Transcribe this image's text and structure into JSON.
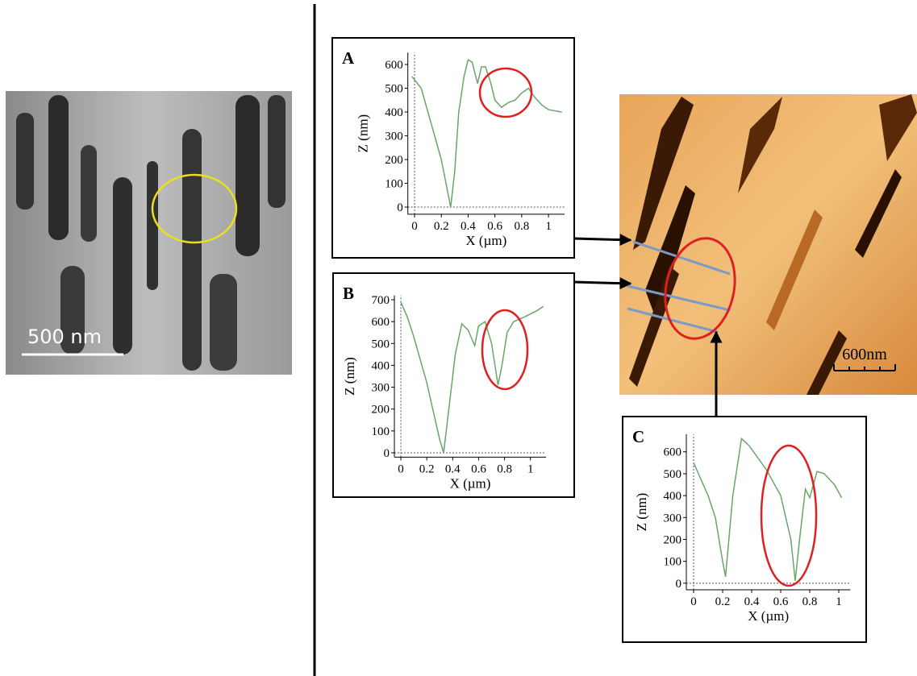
{
  "sem_scale_bar": "500 nm",
  "afm_scale_bar": "600nm",
  "chart_data": [
    {
      "type": "line",
      "label": "A",
      "xlabel": "X (µm)",
      "ylabel": "Z (nm)",
      "xlim": [
        -0.05,
        1.12
      ],
      "ylim": [
        -30,
        650
      ],
      "xticks": [
        0,
        0.2,
        0.4,
        0.6,
        0.8,
        1
      ],
      "yticks": [
        0,
        100,
        200,
        300,
        400,
        500,
        600
      ],
      "series": [
        {
          "color": "#6aa56a",
          "x": [
            -0.02,
            0.05,
            0.1,
            0.2,
            0.27,
            0.3,
            0.33,
            0.37,
            0.4,
            0.43,
            0.47,
            0.5,
            0.53,
            0.57,
            0.6,
            0.65,
            0.7,
            0.75,
            0.8,
            0.85,
            0.9,
            0.95,
            1.0,
            1.1
          ],
          "values": [
            550,
            500,
            400,
            200,
            0,
            150,
            400,
            550,
            620,
            610,
            520,
            590,
            590,
            520,
            450,
            420,
            440,
            450,
            480,
            500,
            460,
            430,
            410,
            400
          ]
        }
      ]
    },
    {
      "type": "line",
      "label": "B",
      "xlabel": "X (µm)",
      "ylabel": "Z (nm)",
      "xlim": [
        -0.05,
        1.12
      ],
      "ylim": [
        -20,
        720
      ],
      "xticks": [
        0,
        0.2,
        0.4,
        0.6,
        0.8,
        1
      ],
      "yticks": [
        0,
        100,
        200,
        300,
        400,
        500,
        600,
        700
      ],
      "series": [
        {
          "color": "#6aa56a",
          "x": [
            0,
            0.05,
            0.1,
            0.2,
            0.3,
            0.33,
            0.37,
            0.42,
            0.47,
            0.52,
            0.57,
            0.6,
            0.65,
            0.7,
            0.75,
            0.78,
            0.82,
            0.87,
            0.95,
            1.05,
            1.1
          ],
          "values": [
            690,
            620,
            530,
            320,
            60,
            0,
            200,
            450,
            590,
            560,
            490,
            580,
            600,
            500,
            310,
            400,
            550,
            600,
            620,
            650,
            670
          ]
        }
      ]
    },
    {
      "type": "line",
      "label": "C",
      "xlabel": "X (µm)",
      "ylabel": "Z (nm)",
      "xlim": [
        -0.05,
        1.08
      ],
      "ylim": [
        -30,
        680
      ],
      "xticks": [
        0,
        0.2,
        0.4,
        0.6,
        0.8,
        1
      ],
      "yticks": [
        0,
        100,
        200,
        300,
        400,
        500,
        600
      ],
      "series": [
        {
          "color": "#6aa56a",
          "x": [
            0,
            0.1,
            0.15,
            0.2,
            0.22,
            0.27,
            0.33,
            0.38,
            0.5,
            0.6,
            0.67,
            0.7,
            0.73,
            0.77,
            0.8,
            0.85,
            0.9,
            0.97,
            1.02
          ],
          "values": [
            550,
            400,
            300,
            100,
            30,
            400,
            660,
            630,
            520,
            400,
            200,
            10,
            200,
            430,
            390,
            510,
            500,
            450,
            390
          ]
        }
      ]
    }
  ]
}
